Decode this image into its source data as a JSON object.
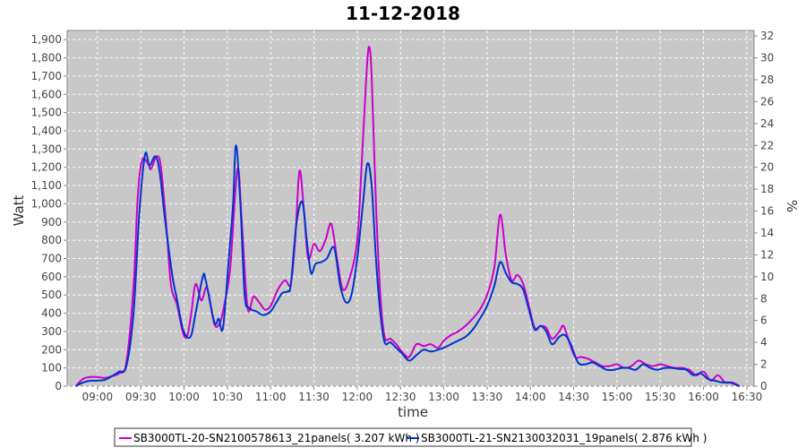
{
  "chart_data": {
    "type": "line",
    "title": "11-12-2018",
    "xlabel": "time",
    "ylabel": "Watt",
    "y2label": "%",
    "ylim": [
      0,
      1950
    ],
    "y2lim": [
      0,
      32.5
    ],
    "xlim": [
      "08:39",
      "16:35"
    ],
    "x_tick_labels": [
      "09:00",
      "09:30",
      "10:00",
      "10:30",
      "11:00",
      "11:30",
      "12:00",
      "12:30",
      "13:00",
      "13:30",
      "14:00",
      "14:30",
      "15:00",
      "15:30",
      "16:00",
      "16:30"
    ],
    "y_tick_labels": [
      "0",
      "100",
      "200",
      "300",
      "400",
      "500",
      "600",
      "700",
      "800",
      "900",
      "1,000",
      "1,100",
      "1,200",
      "1,300",
      "1,400",
      "1,500",
      "1,600",
      "1,700",
      "1,800",
      "1,900"
    ],
    "y2_tick_labels": [
      "0",
      "2",
      "4",
      "6",
      "8",
      "10",
      "12",
      "14",
      "16",
      "18",
      "20",
      "22",
      "24",
      "26",
      "28",
      "30",
      "32"
    ],
    "grid": true,
    "legend_position": "bottom",
    "series": [
      {
        "name": "SB3000TL-20-SN2100578613_21panels( 3.207 kWh )",
        "color": "#cc00cc",
        "points": [
          [
            "08:45",
            0
          ],
          [
            "08:50",
            40
          ],
          [
            "08:55",
            50
          ],
          [
            "09:00",
            50
          ],
          [
            "09:05",
            45
          ],
          [
            "09:10",
            55
          ],
          [
            "09:15",
            70
          ],
          [
            "09:20",
            130
          ],
          [
            "09:25",
            550
          ],
          [
            "09:28",
            1050
          ],
          [
            "09:31",
            1240
          ],
          [
            "09:35",
            1220
          ],
          [
            "09:37",
            1190
          ],
          [
            "09:41",
            1260
          ],
          [
            "09:44",
            1200
          ],
          [
            "09:48",
            850
          ],
          [
            "09:51",
            550
          ],
          [
            "09:55",
            450
          ],
          [
            "09:59",
            300
          ],
          [
            "10:02",
            270
          ],
          [
            "10:05",
            400
          ],
          [
            "10:08",
            560
          ],
          [
            "10:12",
            470
          ],
          [
            "10:16",
            540
          ],
          [
            "10:21",
            340
          ],
          [
            "10:25",
            350
          ],
          [
            "10:28",
            450
          ],
          [
            "10:32",
            650
          ],
          [
            "10:37",
            1190
          ],
          [
            "10:40",
            900
          ],
          [
            "10:44",
            430
          ],
          [
            "10:48",
            490
          ],
          [
            "10:52",
            460
          ],
          [
            "10:56",
            420
          ],
          [
            "11:00",
            440
          ],
          [
            "11:05",
            530
          ],
          [
            "11:10",
            580
          ],
          [
            "11:14",
            560
          ],
          [
            "11:17",
            800
          ],
          [
            "11:20",
            1180
          ],
          [
            "11:23",
            970
          ],
          [
            "11:26",
            700
          ],
          [
            "11:30",
            780
          ],
          [
            "11:34",
            740
          ],
          [
            "11:38",
            800
          ],
          [
            "11:42",
            890
          ],
          [
            "11:46",
            700
          ],
          [
            "11:50",
            530
          ],
          [
            "11:55",
            600
          ],
          [
            "12:00",
            800
          ],
          [
            "12:03",
            1200
          ],
          [
            "12:06",
            1650
          ],
          [
            "12:08",
            1860
          ],
          [
            "12:10",
            1700
          ],
          [
            "12:13",
            1000
          ],
          [
            "12:16",
            500
          ],
          [
            "12:19",
            270
          ],
          [
            "12:23",
            260
          ],
          [
            "12:27",
            230
          ],
          [
            "12:32",
            180
          ],
          [
            "12:36",
            160
          ],
          [
            "12:41",
            230
          ],
          [
            "12:46",
            220
          ],
          [
            "12:51",
            230
          ],
          [
            "12:56",
            210
          ],
          [
            "13:00",
            250
          ],
          [
            "13:05",
            280
          ],
          [
            "13:10",
            300
          ],
          [
            "13:15",
            330
          ],
          [
            "13:20",
            370
          ],
          [
            "13:25",
            420
          ],
          [
            "13:30",
            500
          ],
          [
            "13:35",
            650
          ],
          [
            "13:39",
            940
          ],
          [
            "13:43",
            720
          ],
          [
            "13:47",
            580
          ],
          [
            "13:51",
            610
          ],
          [
            "13:55",
            560
          ],
          [
            "13:59",
            440
          ],
          [
            "14:03",
            320
          ],
          [
            "14:07",
            330
          ],
          [
            "14:11",
            320
          ],
          [
            "14:15",
            260
          ],
          [
            "14:20",
            300
          ],
          [
            "14:23",
            330
          ],
          [
            "14:27",
            240
          ],
          [
            "14:31",
            160
          ],
          [
            "14:35",
            160
          ],
          [
            "14:40",
            150
          ],
          [
            "14:45",
            130
          ],
          [
            "14:50",
            110
          ],
          [
            "14:55",
            110
          ],
          [
            "15:00",
            120
          ],
          [
            "15:05",
            100
          ],
          [
            "15:10",
            110
          ],
          [
            "15:15",
            140
          ],
          [
            "15:20",
            120
          ],
          [
            "15:25",
            110
          ],
          [
            "15:30",
            120
          ],
          [
            "15:35",
            110
          ],
          [
            "15:40",
            100
          ],
          [
            "15:45",
            100
          ],
          [
            "15:50",
            90
          ],
          [
            "15:55",
            60
          ],
          [
            "16:00",
            80
          ],
          [
            "16:05",
            30
          ],
          [
            "16:10",
            60
          ],
          [
            "16:15",
            20
          ],
          [
            "16:20",
            20
          ],
          [
            "16:25",
            0
          ]
        ]
      },
      {
        "name": "SB3000TL-21-SN2130032031_19panels( 2.876 kWh )",
        "color": "#0033cc",
        "points": [
          [
            "08:45",
            0
          ],
          [
            "08:50",
            20
          ],
          [
            "08:55",
            30
          ],
          [
            "09:00",
            30
          ],
          [
            "09:05",
            35
          ],
          [
            "09:10",
            55
          ],
          [
            "09:15",
            80
          ],
          [
            "09:20",
            110
          ],
          [
            "09:25",
            400
          ],
          [
            "09:29",
            950
          ],
          [
            "09:33",
            1270
          ],
          [
            "09:36",
            1210
          ],
          [
            "09:40",
            1260
          ],
          [
            "09:43",
            1180
          ],
          [
            "09:47",
            900
          ],
          [
            "09:52",
            600
          ],
          [
            "09:55",
            480
          ],
          [
            "09:59",
            320
          ],
          [
            "10:02",
            270
          ],
          [
            "10:05",
            280
          ],
          [
            "10:08",
            400
          ],
          [
            "10:13",
            600
          ],
          [
            "10:15",
            580
          ],
          [
            "10:21",
            350
          ],
          [
            "10:24",
            370
          ],
          [
            "10:27",
            320
          ],
          [
            "10:31",
            700
          ],
          [
            "10:34",
            1000
          ],
          [
            "10:36",
            1320
          ],
          [
            "10:39",
            1000
          ],
          [
            "10:42",
            500
          ],
          [
            "10:45",
            430
          ],
          [
            "10:50",
            410
          ],
          [
            "10:55",
            390
          ],
          [
            "11:00",
            410
          ],
          [
            "11:04",
            460
          ],
          [
            "11:08",
            510
          ],
          [
            "11:12",
            520
          ],
          [
            "11:14",
            560
          ],
          [
            "11:18",
            900
          ],
          [
            "11:22",
            1010
          ],
          [
            "11:25",
            800
          ],
          [
            "11:28",
            620
          ],
          [
            "11:31",
            670
          ],
          [
            "11:35",
            680
          ],
          [
            "11:39",
            700
          ],
          [
            "11:44",
            760
          ],
          [
            "11:48",
            560
          ],
          [
            "11:52",
            460
          ],
          [
            "11:56",
            500
          ],
          [
            "12:00",
            700
          ],
          [
            "12:04",
            1000
          ],
          [
            "12:07",
            1220
          ],
          [
            "12:10",
            1100
          ],
          [
            "12:13",
            700
          ],
          [
            "12:16",
            400
          ],
          [
            "12:19",
            240
          ],
          [
            "12:23",
            240
          ],
          [
            "12:27",
            210
          ],
          [
            "12:31",
            180
          ],
          [
            "12:36",
            140
          ],
          [
            "12:41",
            170
          ],
          [
            "12:46",
            200
          ],
          [
            "12:51",
            190
          ],
          [
            "12:56",
            200
          ],
          [
            "13:00",
            210
          ],
          [
            "13:05",
            230
          ],
          [
            "13:10",
            250
          ],
          [
            "13:15",
            270
          ],
          [
            "13:20",
            310
          ],
          [
            "13:25",
            370
          ],
          [
            "13:30",
            440
          ],
          [
            "13:35",
            550
          ],
          [
            "13:39",
            680
          ],
          [
            "13:43",
            620
          ],
          [
            "13:47",
            570
          ],
          [
            "13:51",
            560
          ],
          [
            "13:55",
            530
          ],
          [
            "13:59",
            420
          ],
          [
            "14:03",
            310
          ],
          [
            "14:07",
            330
          ],
          [
            "14:11",
            300
          ],
          [
            "14:15",
            230
          ],
          [
            "14:20",
            270
          ],
          [
            "14:24",
            280
          ],
          [
            "14:28",
            230
          ],
          [
            "14:33",
            130
          ],
          [
            "14:38",
            120
          ],
          [
            "14:43",
            130
          ],
          [
            "14:48",
            110
          ],
          [
            "14:53",
            90
          ],
          [
            "14:58",
            90
          ],
          [
            "15:03",
            100
          ],
          [
            "15:08",
            100
          ],
          [
            "15:13",
            90
          ],
          [
            "15:18",
            120
          ],
          [
            "15:23",
            100
          ],
          [
            "15:28",
            90
          ],
          [
            "15:33",
            100
          ],
          [
            "15:38",
            100
          ],
          [
            "15:43",
            95
          ],
          [
            "15:48",
            90
          ],
          [
            "15:53",
            60
          ],
          [
            "15:58",
            70
          ],
          [
            "16:03",
            40
          ],
          [
            "16:08",
            30
          ],
          [
            "16:13",
            20
          ],
          [
            "16:18",
            20
          ],
          [
            "16:25",
            0
          ]
        ]
      }
    ]
  }
}
